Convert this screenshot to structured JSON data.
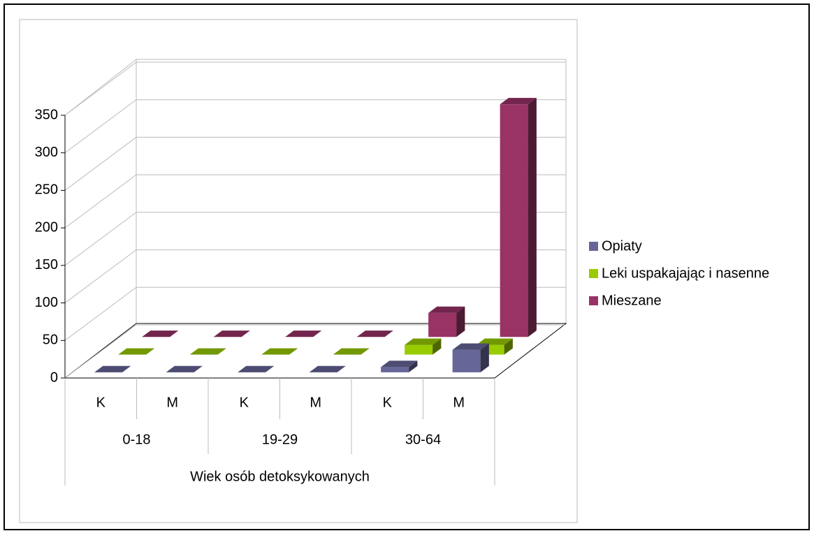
{
  "chart_data": {
    "type": "bar3d",
    "categories": [
      "K",
      "M",
      "K",
      "M",
      "K",
      "M"
    ],
    "groups": [
      "0-18",
      "19-29",
      "30-64"
    ],
    "x_label": "Wiek osób detoksykowanych",
    "series": [
      {
        "name": "Opiaty",
        "color": "#666699",
        "values": [
          0,
          0,
          0,
          0,
          7,
          30
        ]
      },
      {
        "name": "Leki uspakajając i nasenne",
        "color": "#99cc00",
        "values": [
          0,
          0,
          0,
          0,
          13,
          13
        ]
      },
      {
        "name": "Mieszane",
        "color": "#993366",
        "values": [
          0,
          0,
          0,
          0,
          32,
          310
        ]
      }
    ],
    "ylim": [
      0,
      350
    ],
    "yticks": [
      0,
      50,
      100,
      150,
      200,
      250,
      300,
      350
    ],
    "grid": true,
    "legend": "right"
  }
}
